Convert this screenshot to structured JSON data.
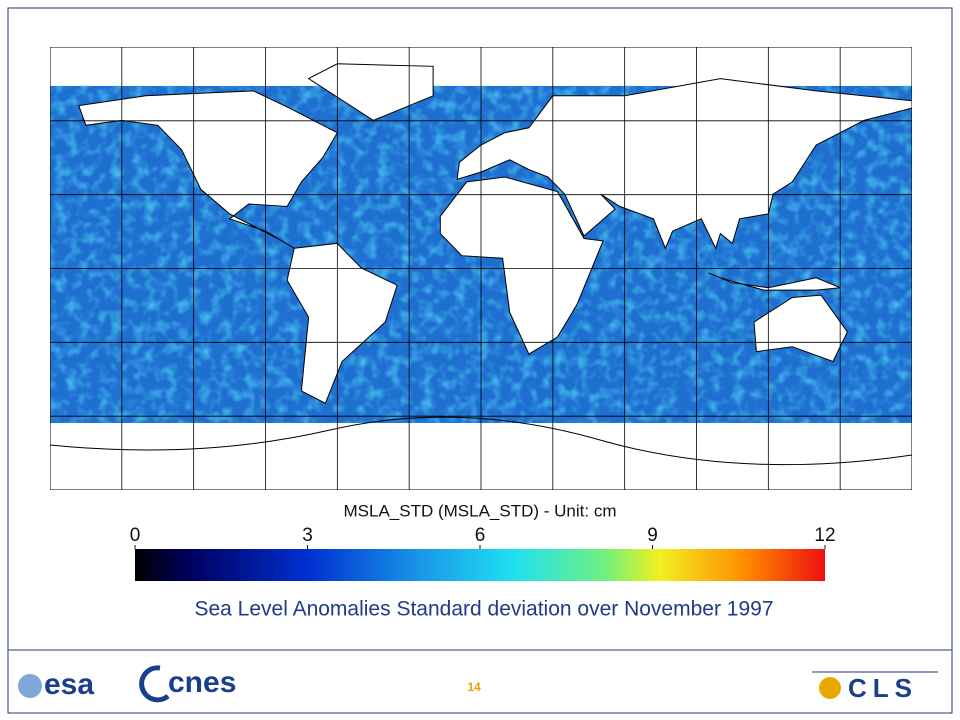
{
  "figure": {
    "colorbar": {
      "title": "MSLA_STD  (MSLA_STD)  -  Unit: cm",
      "range": [
        0,
        12
      ],
      "ticks": [
        0,
        3,
        6,
        9,
        12
      ]
    }
  },
  "caption": "Sea Level Anomalies Standard deviation over November 1997",
  "footer": {
    "page_number": "14",
    "logos": [
      "esa",
      "cnes",
      "CLS"
    ]
  }
}
